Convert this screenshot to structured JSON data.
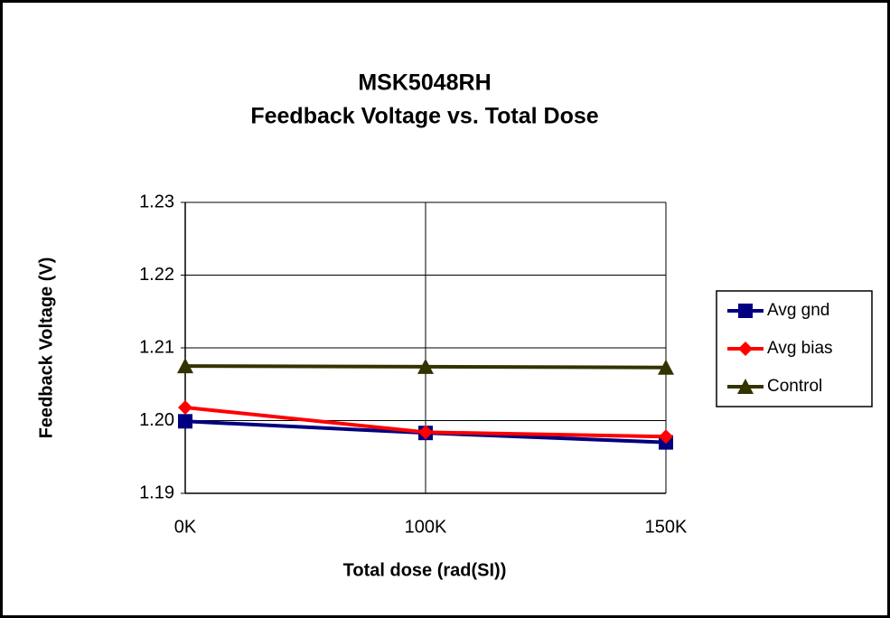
{
  "chart_data": {
    "type": "line",
    "title": "MSK5048RH",
    "subtitle": "Feedback Voltage vs. Total Dose",
    "x_label": "Total dose (rad(SI))",
    "y_label": "Feedback Voltage (V)",
    "categories": [
      "0K",
      "100K",
      "150K"
    ],
    "series": [
      {
        "name": "Avg gnd",
        "color": "#000080",
        "marker": "square",
        "values": [
          1.1999,
          1.1983,
          1.197
        ]
      },
      {
        "name": "Avg bias",
        "color": "#ff0000",
        "marker": "diamond",
        "values": [
          1.2018,
          1.1984,
          1.1978
        ]
      },
      {
        "name": "Control",
        "color": "#333300",
        "marker": "triangle",
        "values": [
          1.2075,
          1.2074,
          1.2073
        ]
      }
    ],
    "ylim": [
      1.19,
      1.23
    ],
    "yticks": [
      1.19,
      {
        "value": 1.2,
        "label": "1.20"
      },
      1.21,
      1.22,
      1.23
    ],
    "grid": true,
    "legend": "right"
  }
}
